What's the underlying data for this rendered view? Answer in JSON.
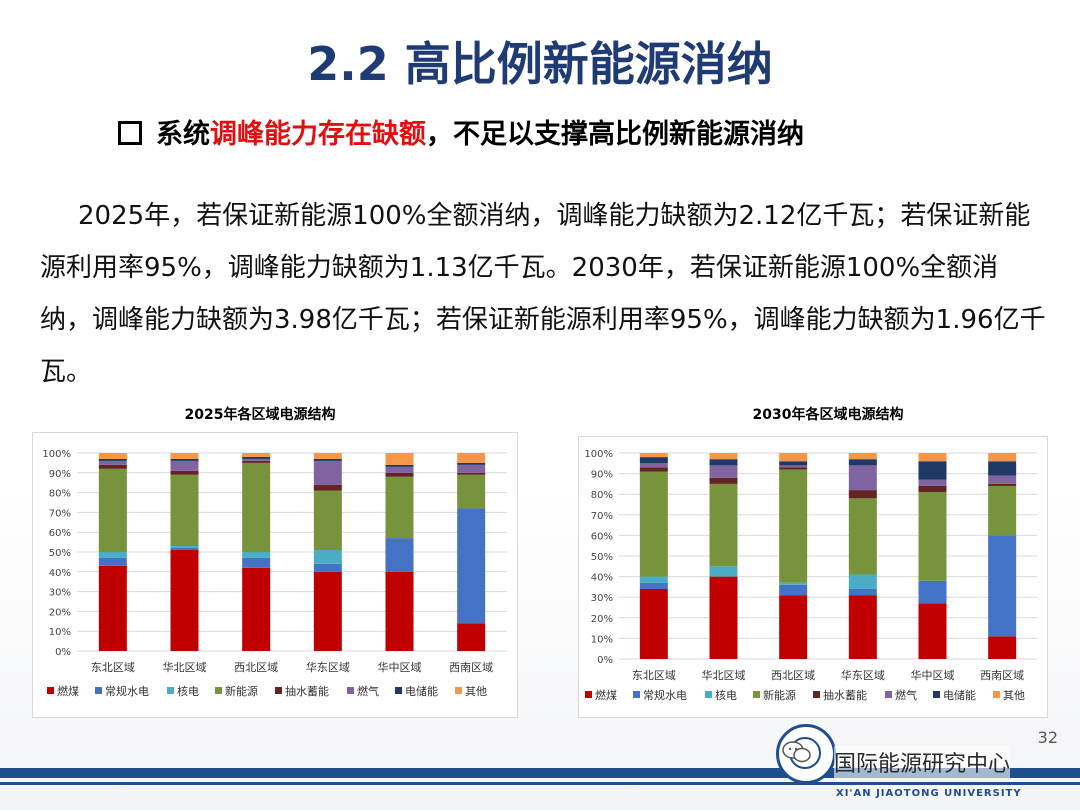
{
  "slide": {
    "title": "2.2 高比例新能源消纳",
    "subtitle_prefix": "系统",
    "subtitle_highlight": "调峰能力存在缺额",
    "subtitle_suffix": "，不足以支撑高比例新能源消纳",
    "paragraph": "2025年，若保证新能源100%全额消纳，调峰能力缺额为2.12亿千瓦；若保证新能源利用率95%，调峰能力缺额为1.13亿千瓦。2030年，若保证新能源100%全额消纳，调峰能力缺额为3.98亿千瓦；若保证新能源利用率95%，调峰能力缺额为1.96亿千瓦。",
    "page_number": "32",
    "org_name": "国际能源研究中心",
    "university": "XI'AN JIAOTONG UNIVERSITY"
  },
  "colors": {
    "燃煤": "#c00000",
    "常规水电": "#4472c4",
    "核电": "#4bacc6",
    "新能源": "#77933c",
    "抽水蓄能": "#632523",
    "燃气": "#8064a2",
    "电储能": "#1f3864",
    "其他": "#f79646"
  },
  "chart_data": [
    {
      "type": "bar",
      "stacked": true,
      "title": "2025年各区域电源结构",
      "categories": [
        "东北区域",
        "华北区域",
        "西北区域",
        "华东区域",
        "华中区域",
        "西南区域"
      ],
      "ylim": [
        0,
        100
      ],
      "y_ticks": [
        "0%",
        "10%",
        "20%",
        "30%",
        "40%",
        "50%",
        "60%",
        "70%",
        "80%",
        "90%",
        "100%"
      ],
      "series": [
        {
          "name": "燃煤",
          "values": [
            43,
            51,
            42,
            40,
            40,
            14
          ]
        },
        {
          "name": "常规水电",
          "values": [
            4,
            1,
            5,
            4,
            17,
            58
          ]
        },
        {
          "name": "核电",
          "values": [
            3,
            1,
            3,
            7,
            0,
            0
          ]
        },
        {
          "name": "新能源",
          "values": [
            42,
            36,
            45,
            30,
            31,
            17
          ]
        },
        {
          "name": "抽水蓄能",
          "values": [
            2,
            2,
            1,
            3,
            2,
            1
          ]
        },
        {
          "name": "燃气",
          "values": [
            2,
            5,
            1,
            12,
            3,
            4
          ]
        },
        {
          "name": "电储能",
          "values": [
            1,
            1,
            1,
            1,
            1,
            1
          ]
        },
        {
          "name": "其他",
          "values": [
            3,
            3,
            2,
            3,
            6,
            5
          ]
        }
      ]
    },
    {
      "type": "bar",
      "stacked": true,
      "title": "2030年各区域电源结构",
      "categories": [
        "东北区域",
        "华北区域",
        "西北区域",
        "华东区域",
        "华中区域",
        "西南区域"
      ],
      "ylim": [
        0,
        100
      ],
      "y_ticks": [
        "0%",
        "10%",
        "20%",
        "30%",
        "40%",
        "50%",
        "60%",
        "70%",
        "80%",
        "90%",
        "100%"
      ],
      "series": [
        {
          "name": "燃煤",
          "values": [
            34,
            40,
            31,
            31,
            27,
            11
          ]
        },
        {
          "name": "常规水电",
          "values": [
            3,
            0,
            5,
            3,
            11,
            49
          ]
        },
        {
          "name": "核电",
          "values": [
            3,
            5,
            1,
            7,
            0,
            0
          ]
        },
        {
          "name": "新能源",
          "values": [
            51,
            40,
            55,
            37,
            43,
            24
          ]
        },
        {
          "name": "抽水蓄能",
          "values": [
            2,
            3,
            1,
            4,
            3,
            1
          ]
        },
        {
          "name": "燃气",
          "values": [
            2,
            6,
            1,
            12,
            3,
            4
          ]
        },
        {
          "name": "电储能",
          "values": [
            3,
            3,
            2,
            3,
            9,
            7
          ]
        },
        {
          "name": "其他",
          "values": [
            2,
            3,
            4,
            3,
            4,
            4
          ]
        }
      ]
    }
  ]
}
